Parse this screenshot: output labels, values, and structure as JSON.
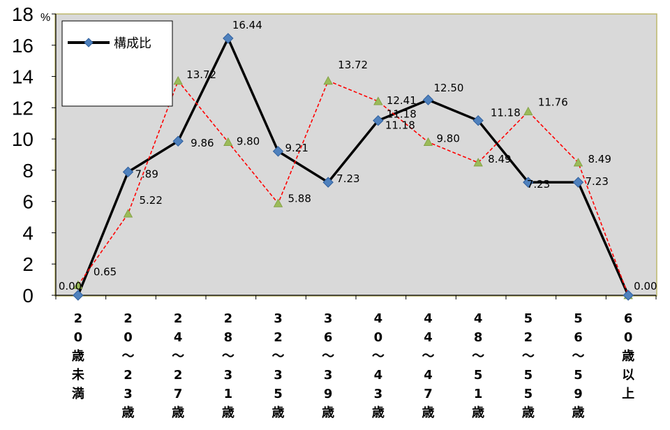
{
  "chart_data": {
    "type": "line",
    "y_unit": "%",
    "ylim": [
      0,
      18
    ],
    "yticks": [
      0,
      2,
      4,
      6,
      8,
      10,
      12,
      14,
      16,
      18
    ],
    "grid": false,
    "legend_position": "top-left",
    "categories": [
      "20歳未満",
      "20〜23歳",
      "24〜27歳",
      "28〜31歳",
      "32〜35歳",
      "36〜39歳",
      "40〜43歳",
      "44〜47歳",
      "48〜51歳",
      "52〜55歳",
      "56〜59歳",
      "60歳以上"
    ],
    "category_label_chars": [
      [
        "2",
        "0",
        "歳",
        "未",
        "満"
      ],
      [
        "2",
        "0",
        "〜",
        "2",
        "3",
        "歳"
      ],
      [
        "2",
        "4",
        "〜",
        "2",
        "7",
        "歳"
      ],
      [
        "2",
        "8",
        "〜",
        "3",
        "1",
        "歳"
      ],
      [
        "3",
        "2",
        "〜",
        "3",
        "5",
        "歳"
      ],
      [
        "3",
        "6",
        "〜",
        "3",
        "9",
        "歳"
      ],
      [
        "4",
        "0",
        "〜",
        "4",
        "3",
        "歳"
      ],
      [
        "4",
        "4",
        "〜",
        "4",
        "7",
        "歳"
      ],
      [
        "4",
        "8",
        "〜",
        "5",
        "1",
        "歳"
      ],
      [
        "5",
        "2",
        "〜",
        "5",
        "5",
        "歳"
      ],
      [
        "5",
        "6",
        "〜",
        "5",
        "9",
        "歳"
      ],
      [
        "6",
        "0",
        "歳",
        "以",
        "上"
      ]
    ],
    "series": [
      {
        "name": "構成比",
        "color": "#000000",
        "marker": "diamond",
        "marker_color": "#4F81BD",
        "values": [
          0.0,
          7.89,
          9.86,
          16.44,
          9.21,
          7.23,
          11.18,
          12.5,
          11.18,
          7.23,
          7.23,
          0.0
        ],
        "labels": [
          "0.00",
          "7.89",
          "9.86",
          "16.44",
          "9.21",
          "7.23",
          "11.18",
          "12.50",
          "",
          "7.23",
          "7.23",
          "0.00"
        ]
      },
      {
        "color": "#FF0000",
        "marker": "triangle",
        "marker_color": "#9BBB59",
        "values": [
          0.65,
          5.22,
          13.72,
          9.8,
          5.88,
          13.72,
          12.41,
          9.8,
          8.49,
          11.76,
          8.49,
          0.0
        ],
        "labels": [
          "0.65",
          "5.22",
          "13.72",
          "9.80",
          "5.88",
          "13.72",
          "12.41",
          "9.80",
          "8.49",
          "11.76",
          "8.49",
          ""
        ]
      }
    ],
    "extra_labels": [
      "11.18",
      "11.18"
    ]
  }
}
